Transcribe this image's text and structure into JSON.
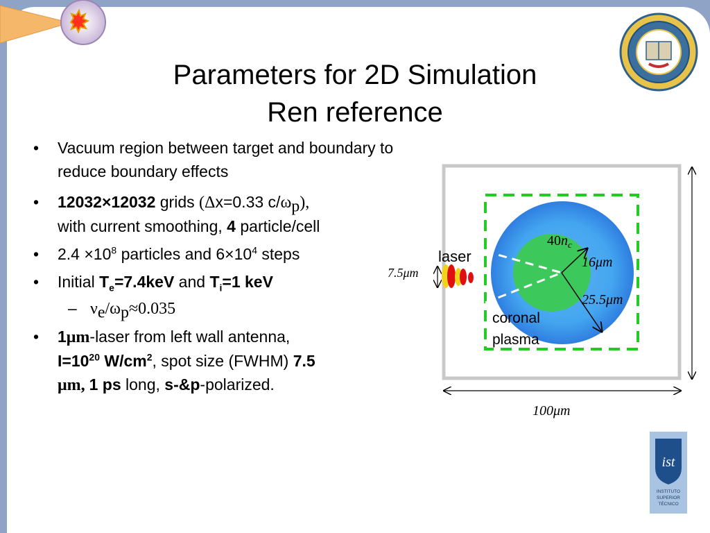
{
  "slide": {
    "title_line1": "Parameters for 2D Simulation",
    "title_line2": "Ren reference",
    "bullets": {
      "b1": "Vacuum region between target and boundary to reduce boundary effects",
      "b2_bold1": "12032",
      "b2_times": "×",
      "b2_bold2": "12032",
      "b2_grids": " grids ",
      "b2_paren_open": "(",
      "b2_delta": "Δ",
      "b2_dx": "x=0.33 c/",
      "b2_omega": "ω",
      "b2_p": "p",
      "b2_paren_close": "),",
      "b2_line2a": "with current smoothing, ",
      "b2_four": "4",
      "b2_line2b": " particle/cell",
      "b3_a": "2.4 ×10",
      "b3_exp1": "8",
      "b3_b": " particles and 6×10",
      "b3_exp2": "4",
      "b3_c": " steps",
      "b4_initial": "Initial ",
      "b4_T": "T",
      "b4_e": "e",
      "b4_te_val": "=7.4keV",
      "b4_and": " and ",
      "b4_T2": "T",
      "b4_i": "i",
      "b4_ti_val": "=1 keV",
      "sub_dash": "–",
      "sub_nu": "ν",
      "sub_e": "e",
      "sub_slash": "/ω",
      "sub_p": "p",
      "sub_val": "≈0.035",
      "b5_one": "1",
      "b5_um": "μm",
      "b5_rest": "-laser from left wall antenna,",
      "b5_I": "I=10",
      "b5_exp": "20",
      "b5_unit": " W/cm",
      "b5_two": "2",
      "b5_spot": ", spot size (FWHM) ",
      "b5_75": "7.5",
      "b5_um2": "μm, ",
      "b5_1ps": "1 ps",
      "b5_long": " long, ",
      "b5_sp": "s-&p",
      "b5_pol": "-polarized."
    }
  },
  "diagram": {
    "label_40nc_num": "40",
    "label_40nc_n": "n",
    "label_40nc_c": "c",
    "label_16um": "16μm",
    "label_255um": "25.5μm",
    "label_laser": "laser",
    "label_75um": "7.5μm",
    "label_coronal": "coronal",
    "label_plasma": "plasma",
    "label_100um": "100μm"
  },
  "logos": {
    "ucla_logo": "UCLA seal",
    "ist_logo": "INSTITUTO SUPERIOR TÉCNICO",
    "ist_line1": "INSTITUTO",
    "ist_line2": "SUPERIOR",
    "ist_line3": "TÉCNICO"
  },
  "colors": {
    "frame_blue": "#8fa3c7",
    "dashed_green": "#22cc22",
    "core_green": "#3cc85a",
    "plasma_blue": "#3b86e6",
    "laser_red": "#e01010",
    "laser_yellow": "#f2d21a"
  }
}
